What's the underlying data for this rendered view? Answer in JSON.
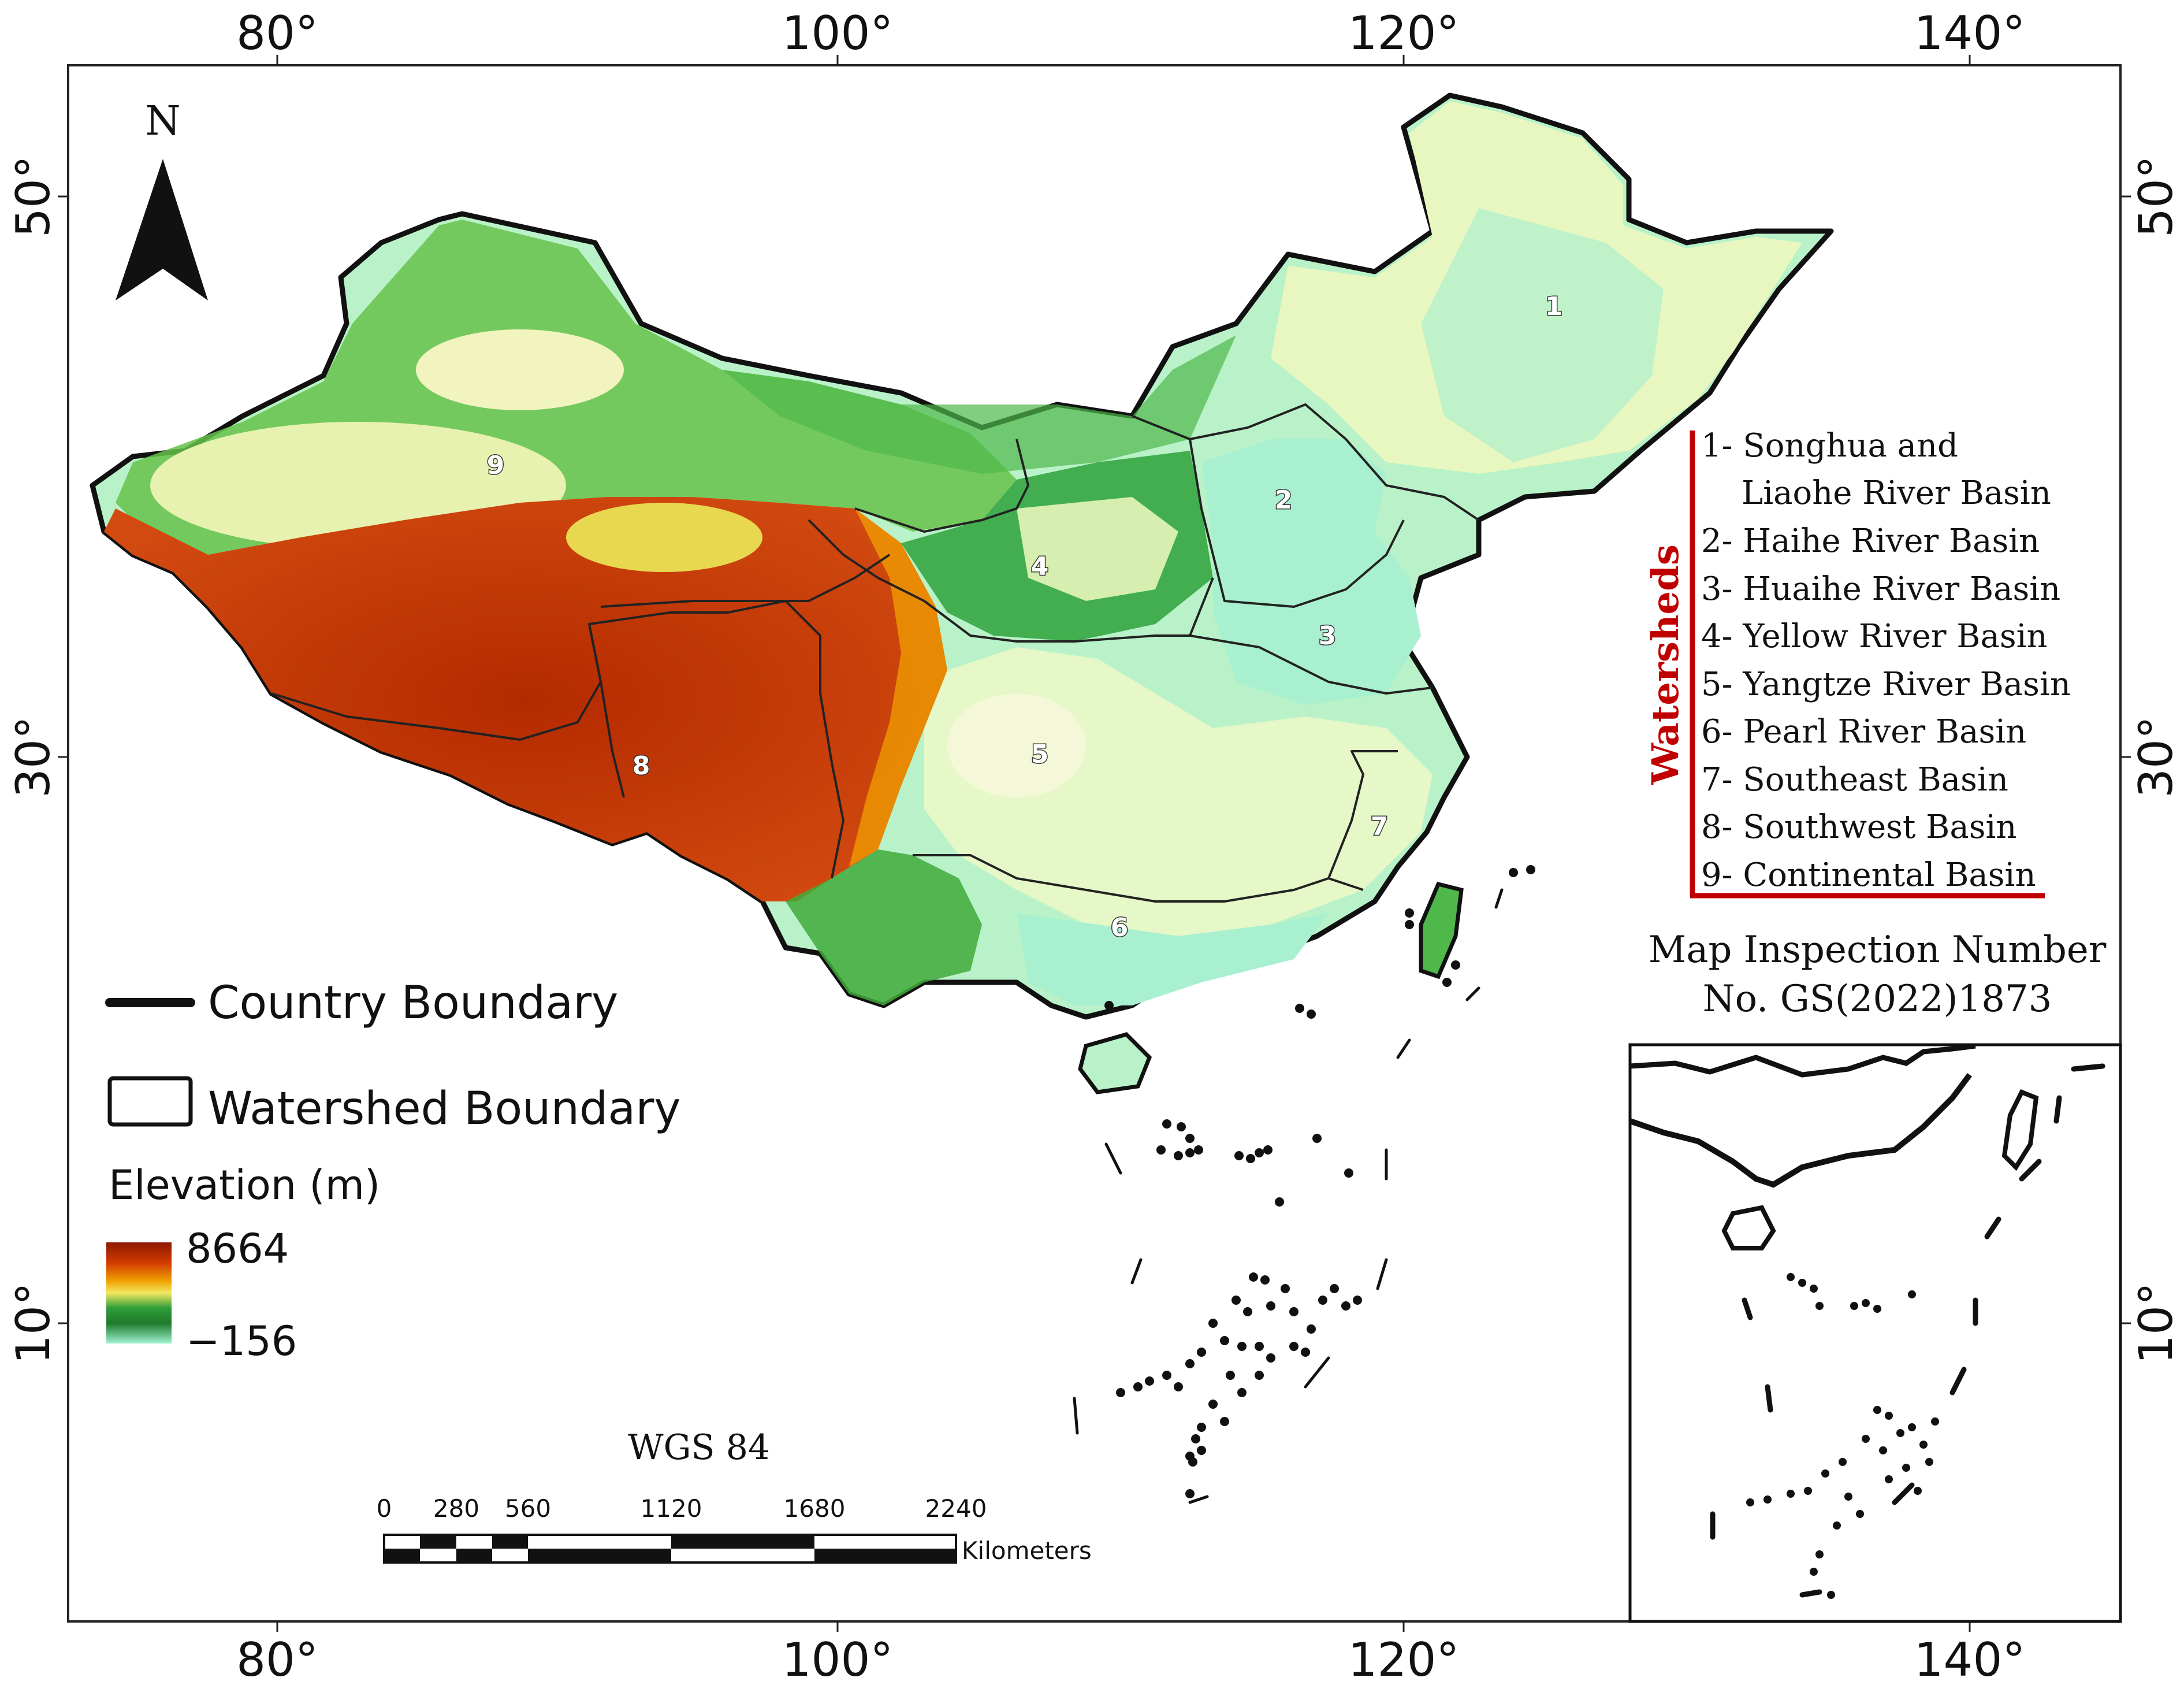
{
  "axes": {
    "lon_labels": [
      "80°",
      "100°",
      "120°",
      "140°"
    ],
    "lat_labels": [
      "50°",
      "30°",
      "10°"
    ]
  },
  "north_arrow": {
    "label": "N",
    "icon": "north-arrow-icon"
  },
  "legend": {
    "country_boundary": "Country Boundary",
    "watershed_boundary": "Watershed Boundary",
    "elevation_title": "Elevation (m)",
    "elevation_max": "8664",
    "elevation_min": "−156",
    "colors": [
      "#8b1a00",
      "#d23a00",
      "#f0a000",
      "#f3e860",
      "#2e9e3a",
      "#1f7a2a",
      "#9ff2d0"
    ]
  },
  "watersheds": {
    "title": "Watersheds",
    "accent_color": "#c00000",
    "items": [
      "1- Songhua and",
      "Liaohe River Basin",
      "2- Haihe River Basin",
      "3- Huaihe River Basin",
      "4- Yellow River Basin",
      "5- Yangtze River Basin",
      "6- Pearl River Basin",
      "7- Southeast Basin",
      "8- Southwest Basin",
      "9- Continental Basin"
    ]
  },
  "basin_numbers": [
    "1",
    "2",
    "3",
    "4",
    "5",
    "6",
    "7",
    "8",
    "9"
  ],
  "inspection": {
    "line1": "Map Inspection Number",
    "line2": "No. GS(2022)1873"
  },
  "projection": "WGS 84",
  "scale_bar": {
    "ticks": [
      "0",
      "280",
      "560",
      "1120",
      "1680",
      "2240"
    ],
    "unit": "Kilometers"
  }
}
